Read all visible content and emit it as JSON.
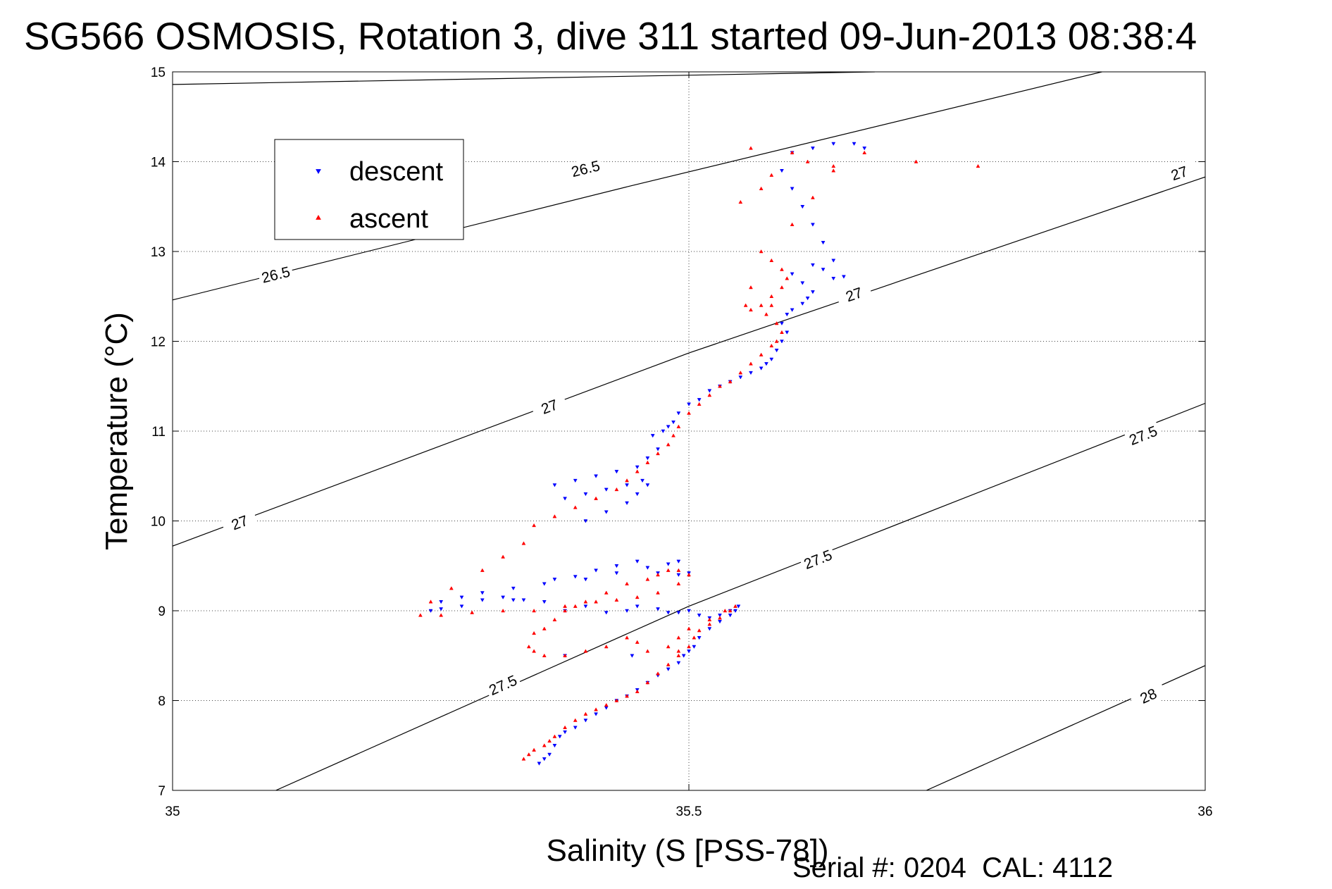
{
  "chart_data": {
    "type": "scatter",
    "title": "SG566 OSMOSIS, Rotation 3, dive 311 started 09-Jun-2013 08:38:4",
    "xlabel": "Salinity (S [PSS-78])",
    "ylabel": "Temperature (°C)",
    "xlim": [
      35,
      36
    ],
    "ylim": [
      7,
      15
    ],
    "x_ticks": [
      "35",
      "35.5",
      "36"
    ],
    "y_ticks": [
      "7",
      "8",
      "9",
      "10",
      "11",
      "12",
      "13",
      "14",
      "15"
    ],
    "grid": "dotted at 35.5 and each integer temperature",
    "footer": "Serial #: 0204  CAL: 4112",
    "legend": {
      "placement": "upper-left",
      "entries": [
        {
          "label": "descent",
          "color": "#0000ff",
          "marker": "triangle-down"
        },
        {
          "label": "ascent",
          "color": "#ff0000",
          "marker": "triangle-up"
        }
      ]
    },
    "density_contours": [
      {
        "label": "26.5",
        "color": "#000000",
        "points": [
          [
            35.0,
            14.86
          ],
          [
            35.68,
            15.0
          ]
        ],
        "label_positions": []
      },
      {
        "label": "26.5",
        "color": "#000000",
        "points": [
          [
            35.0,
            12.46
          ],
          [
            35.44,
            13.72
          ],
          [
            35.9,
            15.0
          ]
        ],
        "label_positions": [
          [
            35.1,
            12.74
          ],
          [
            35.4,
            13.92
          ]
        ]
      },
      {
        "label": "27",
        "color": "#000000",
        "points": [
          [
            35.0,
            9.72
          ],
          [
            35.5,
            11.87
          ],
          [
            36.0,
            13.83
          ]
        ],
        "label_positions": [
          [
            35.065,
            9.98
          ],
          [
            35.365,
            11.27
          ],
          [
            35.66,
            12.52
          ],
          [
            35.975,
            13.87
          ]
        ]
      },
      {
        "label": "27.5",
        "color": "#000000",
        "points": [
          [
            35.1,
            7.0
          ],
          [
            35.5,
            9.05
          ],
          [
            36.0,
            11.31
          ]
        ],
        "label_positions": [
          [
            35.32,
            8.17
          ],
          [
            35.625,
            9.57
          ],
          [
            35.94,
            10.95
          ]
        ]
      },
      {
        "label": "28",
        "color": "#000000",
        "points": [
          [
            35.73,
            7.0
          ],
          [
            36.0,
            8.39
          ]
        ],
        "label_positions": [
          [
            35.945,
            8.05
          ]
        ]
      }
    ],
    "series": [
      {
        "name": "descent",
        "color": "#0000ff",
        "marker": "triangle-down",
        "x": [
          35.355,
          35.36,
          35.365,
          35.37,
          35.375,
          35.38,
          35.39,
          35.4,
          35.41,
          35.42,
          35.43,
          35.44,
          35.45,
          35.46,
          35.47,
          35.48,
          35.49,
          35.495,
          35.5,
          35.505,
          35.51,
          35.52,
          35.53,
          35.54,
          35.545,
          35.548,
          35.54,
          35.53,
          35.52,
          35.51,
          35.5,
          35.49,
          35.48,
          35.47,
          35.45,
          35.44,
          35.42,
          35.4,
          35.38,
          35.36,
          35.34,
          35.33,
          35.32,
          35.3,
          35.28,
          35.26,
          35.25,
          35.26,
          35.28,
          35.3,
          35.33,
          35.36,
          35.4,
          35.43,
          35.46,
          35.48,
          35.49,
          35.5,
          35.49,
          35.47,
          35.45,
          35.43,
          35.41,
          35.39,
          35.37,
          35.4,
          35.42,
          35.44,
          35.45,
          35.46,
          35.455,
          35.44,
          35.42,
          35.4,
          35.38,
          35.37,
          35.39,
          35.41,
          35.43,
          35.45,
          35.46,
          35.47,
          35.465,
          35.475,
          35.48,
          35.485,
          35.49,
          35.5,
          35.51,
          35.52,
          35.53,
          35.54,
          35.55,
          35.56,
          35.57,
          35.575,
          35.58,
          35.585,
          35.59,
          35.595,
          35.59,
          35.595,
          35.6,
          35.61,
          35.615,
          35.62,
          35.61,
          35.6,
          35.62,
          35.63,
          35.64,
          35.65,
          35.64,
          35.63,
          35.62,
          35.61,
          35.6,
          35.59,
          35.6,
          35.62,
          35.64,
          35.66,
          35.67,
          35.445,
          35.38
        ],
        "y": [
          7.3,
          7.35,
          7.4,
          7.5,
          7.6,
          7.65,
          7.7,
          7.78,
          7.85,
          7.92,
          8.0,
          8.05,
          8.12,
          8.2,
          8.28,
          8.35,
          8.42,
          8.5,
          8.55,
          8.6,
          8.7,
          8.8,
          8.88,
          8.95,
          9.0,
          9.05,
          9.0,
          8.95,
          8.92,
          8.95,
          9.0,
          8.98,
          8.98,
          9.02,
          9.05,
          9.0,
          8.98,
          9.05,
          9.0,
          9.1,
          9.12,
          9.12,
          9.15,
          9.12,
          9.05,
          9.02,
          9.0,
          9.1,
          9.15,
          9.2,
          9.25,
          9.3,
          9.35,
          9.42,
          9.48,
          9.52,
          9.55,
          9.42,
          9.4,
          9.42,
          9.55,
          9.5,
          9.45,
          9.38,
          9.35,
          10.0,
          10.1,
          10.2,
          10.3,
          10.4,
          10.45,
          10.4,
          10.35,
          10.3,
          10.25,
          10.4,
          10.45,
          10.5,
          10.55,
          10.6,
          10.7,
          10.8,
          10.95,
          11.0,
          11.05,
          11.1,
          11.2,
          11.3,
          11.35,
          11.45,
          11.5,
          11.55,
          11.6,
          11.65,
          11.7,
          11.75,
          11.8,
          11.9,
          12.0,
          12.1,
          12.2,
          12.3,
          12.35,
          12.42,
          12.48,
          12.55,
          12.65,
          12.75,
          12.85,
          12.8,
          12.7,
          12.72,
          12.9,
          13.1,
          13.3,
          13.5,
          13.7,
          13.9,
          14.1,
          14.15,
          14.2,
          14.2,
          14.15,
          8.5,
          8.5
        ]
      },
      {
        "name": "ascent",
        "color": "#ff0000",
        "marker": "triangle-up",
        "x": [
          35.34,
          35.345,
          35.35,
          35.36,
          35.365,
          35.37,
          35.38,
          35.39,
          35.4,
          35.41,
          35.42,
          35.43,
          35.44,
          35.45,
          35.46,
          35.47,
          35.48,
          35.49,
          35.49,
          35.5,
          35.505,
          35.51,
          35.52,
          35.53,
          35.54,
          35.545,
          35.535,
          35.52,
          35.5,
          35.49,
          35.48,
          35.46,
          35.45,
          35.44,
          35.42,
          35.4,
          35.38,
          35.36,
          35.35,
          35.345,
          35.35,
          35.36,
          35.37,
          35.38,
          35.39,
          35.4,
          35.42,
          35.44,
          35.46,
          35.47,
          35.48,
          35.49,
          35.5,
          35.49,
          35.47,
          35.45,
          35.43,
          35.41,
          35.38,
          35.35,
          35.32,
          35.29,
          35.26,
          35.24,
          35.25,
          35.27,
          35.3,
          35.32,
          35.34,
          35.35,
          35.37,
          35.39,
          35.41,
          35.43,
          35.44,
          35.45,
          35.46,
          35.47,
          35.48,
          35.485,
          35.49,
          35.5,
          35.51,
          35.52,
          35.53,
          35.54,
          35.55,
          35.56,
          35.57,
          35.58,
          35.585,
          35.59,
          35.585,
          35.575,
          35.57,
          35.58,
          35.59,
          35.595,
          35.59,
          35.58,
          35.57,
          35.56,
          35.555,
          35.56,
          35.58,
          35.6,
          35.62,
          35.64,
          35.6,
          35.56,
          35.615,
          35.64,
          35.67,
          35.72,
          35.78,
          35.55,
          35.57,
          35.58
        ],
        "y": [
          7.35,
          7.4,
          7.45,
          7.5,
          7.55,
          7.6,
          7.7,
          7.78,
          7.85,
          7.9,
          7.95,
          8.0,
          8.05,
          8.1,
          8.2,
          8.3,
          8.4,
          8.5,
          8.55,
          8.6,
          8.7,
          8.78,
          8.85,
          8.92,
          9.0,
          9.05,
          9.0,
          8.9,
          8.8,
          8.7,
          8.6,
          8.55,
          8.65,
          8.7,
          8.6,
          8.55,
          8.5,
          8.5,
          8.55,
          8.6,
          8.75,
          8.8,
          8.9,
          9.0,
          9.05,
          9.1,
          9.2,
          9.3,
          9.35,
          9.4,
          9.45,
          9.45,
          9.4,
          9.3,
          9.2,
          9.15,
          9.12,
          9.1,
          9.05,
          9.0,
          9.0,
          8.98,
          8.95,
          8.95,
          9.1,
          9.25,
          9.45,
          9.6,
          9.75,
          9.95,
          10.05,
          10.15,
          10.25,
          10.35,
          10.45,
          10.55,
          10.65,
          10.75,
          10.85,
          10.95,
          11.05,
          11.2,
          11.3,
          11.4,
          11.5,
          11.55,
          11.65,
          11.75,
          11.85,
          11.95,
          12.0,
          12.1,
          12.2,
          12.3,
          12.4,
          12.5,
          12.6,
          12.7,
          12.8,
          12.9,
          13.0,
          12.6,
          12.4,
          12.35,
          12.4,
          13.3,
          13.6,
          13.9,
          14.1,
          14.15,
          14.0,
          13.95,
          14.1,
          14.0,
          13.95,
          13.55,
          13.7,
          13.85
        ]
      }
    ]
  }
}
